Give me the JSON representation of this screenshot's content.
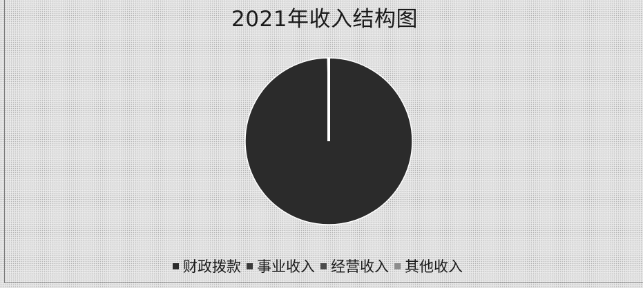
{
  "chart_data": {
    "type": "pie",
    "title": "2021年收入结构图",
    "categories": [
      "财政拨款",
      "事业收入",
      "经营收入",
      "其他收入"
    ],
    "values": [
      99.8,
      0,
      0,
      0.2
    ],
    "colors": [
      "#2b2b2b",
      "#3a3a3a",
      "#4a4a4a",
      "#8c8c8c"
    ],
    "legend": "bottom",
    "xlabel": "",
    "ylabel": ""
  }
}
